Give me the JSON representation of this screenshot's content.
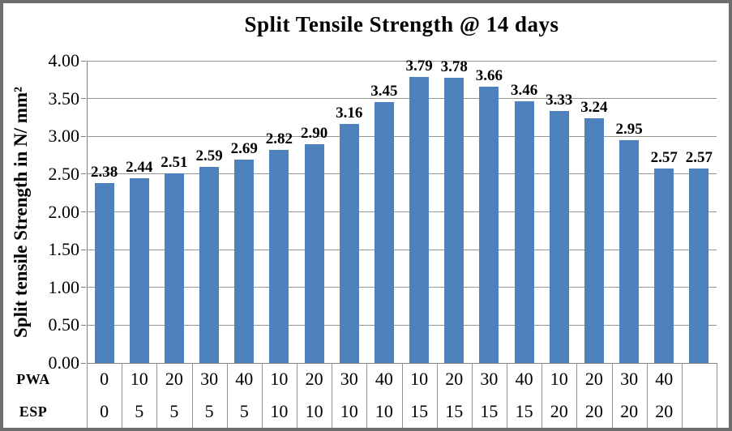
{
  "chart_data": {
    "type": "bar",
    "title": "Split Tensile Strength @ 14 days",
    "ylabel": "Split tensile Strength in N/ mm²",
    "ylim": [
      0,
      4
    ],
    "ytick_step": 0.5,
    "ytick_decimals": 2,
    "grid": true,
    "legend": false,
    "bar_color": "#4F81BD",
    "gridline_color": "#959595",
    "axis_color": "#808080",
    "frame_color": "#6E6E6E",
    "category_rows": [
      {
        "label": "PWA",
        "values": [
          "0",
          "10",
          "20",
          "30",
          "40",
          "10",
          "20",
          "30",
          "40",
          "10",
          "20",
          "30",
          "40",
          "10",
          "20",
          "30",
          "40",
          ""
        ]
      },
      {
        "label": "ESP",
        "values": [
          "0",
          "5",
          "5",
          "5",
          "5",
          "10",
          "10",
          "10",
          "10",
          "15",
          "15",
          "15",
          "15",
          "20",
          "20",
          "20",
          "20",
          ""
        ]
      }
    ],
    "values": [
      2.38,
      2.44,
      2.51,
      2.59,
      2.69,
      2.82,
      2.9,
      3.16,
      3.45,
      3.79,
      3.78,
      3.66,
      3.46,
      3.33,
      3.24,
      2.95,
      2.57,
      2.57
    ],
    "value_label_decimals": 2
  }
}
